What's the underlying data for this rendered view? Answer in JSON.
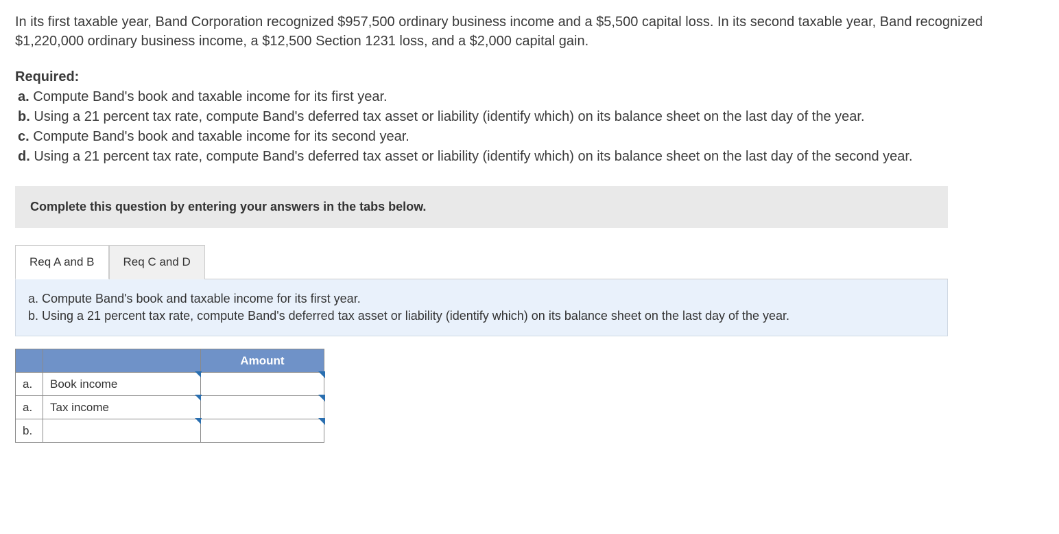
{
  "problem": {
    "intro": "In its first taxable year, Band Corporation recognized $957,500 ordinary business income and a $5,500 capital loss. In its second taxable year, Band recognized $1,220,000 ordinary business income, a $12,500 Section 1231 loss, and a $2,000 capital gain."
  },
  "required": {
    "label": "Required:",
    "a": "Compute Band's book and taxable income for its first year.",
    "b": "Using a 21 percent tax rate, compute Band's deferred tax asset or liability (identify which) on its balance sheet on the last day of the year.",
    "c": "Compute Band's book and taxable income for its second year.",
    "d": "Using a 21 percent tax rate, compute Band's deferred tax asset or liability (identify which) on its balance sheet on the last day of the second year."
  },
  "instruction": "Complete this question by entering your answers in the tabs below.",
  "tabs": {
    "ab": "Req A and B",
    "cd": "Req C and D"
  },
  "panel": {
    "line1": "a. Compute Band's book and taxable income for its first year.",
    "line2": "b. Using a 21 percent tax rate, compute Band's deferred tax asset or liability (identify which) on its balance sheet on the last day of the year."
  },
  "table": {
    "amount_header": "Amount",
    "rows": [
      {
        "letter": "a.",
        "label": "Book income",
        "amount": ""
      },
      {
        "letter": "a.",
        "label": "Tax income",
        "amount": ""
      },
      {
        "letter": "b.",
        "label": "",
        "amount": ""
      }
    ]
  },
  "colors": {
    "panel_bg": "#e9f1fb",
    "instruction_bg": "#e9e9e9",
    "table_header_bg": "#6f92c8",
    "marker": "#2a6fb0"
  }
}
